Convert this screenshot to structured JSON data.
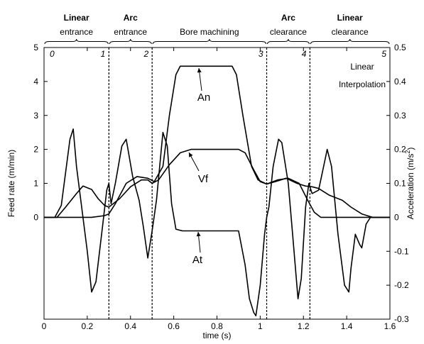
{
  "chart_data": {
    "type": "line",
    "xlabel": "time (s)",
    "ylabel_left": "Feed rate (m/min)",
    "ylabel_right": "Acceleration (m/s",
    "ylabel_right_sup": "2",
    "ylabel_right_end": ")",
    "xlim": [
      0,
      1.6
    ],
    "ylim_left": [
      -3,
      5
    ],
    "ylim_right": [
      -0.3,
      0.5
    ],
    "x_ticks": [
      "0",
      "0.2",
      "0.4",
      "0.6",
      "0.8",
      "1",
      "1.2",
      "1.4",
      "1.6"
    ],
    "y_left_ticks": [
      "0",
      "1",
      "2",
      "3",
      "4",
      "5"
    ],
    "y_right_ticks": [
      "-0.3",
      "-0.2",
      "-0.1",
      "0",
      "0.1",
      "0.2",
      "0.3",
      "0.4",
      "0.5"
    ],
    "phase_boundaries": [
      0.3,
      0.5,
      1.03,
      1.23
    ],
    "phases": [
      {
        "bold": "Linear",
        "regular": "entrance"
      },
      {
        "bold": "Arc",
        "regular": "entrance"
      },
      {
        "bold": "",
        "regular": "Bore machining"
      },
      {
        "bold": "Arc",
        "regular": "clearance"
      },
      {
        "bold": "Linear",
        "regular": "clearance"
      }
    ],
    "point_labels": [
      "0",
      "1",
      "2",
      "3",
      "4",
      "5"
    ],
    "annotation_lines": [
      "Linear",
      "Interpolation"
    ],
    "series": [
      {
        "name": "Vf",
        "axis": "left",
        "points": [
          [
            0,
            0
          ],
          [
            0.06,
            0
          ],
          [
            0.1,
            0.3
          ],
          [
            0.15,
            0.7
          ],
          [
            0.18,
            0.92
          ],
          [
            0.22,
            0.82
          ],
          [
            0.25,
            0.55
          ],
          [
            0.28,
            0.35
          ],
          [
            0.3,
            0.3
          ],
          [
            0.35,
            0.55
          ],
          [
            0.4,
            0.9
          ],
          [
            0.45,
            1.1
          ],
          [
            0.48,
            1.1
          ],
          [
            0.5,
            1.0
          ],
          [
            0.53,
            1.1
          ],
          [
            0.58,
            1.55
          ],
          [
            0.63,
            1.9
          ],
          [
            0.68,
            2.0
          ],
          [
            0.9,
            2.0
          ],
          [
            0.93,
            1.9
          ],
          [
            0.97,
            1.4
          ],
          [
            1.0,
            1.05
          ],
          [
            1.03,
            0.98
          ],
          [
            1.07,
            1.05
          ],
          [
            1.12,
            1.15
          ],
          [
            1.17,
            1.0
          ],
          [
            1.21,
            0.92
          ],
          [
            1.24,
            0.9
          ],
          [
            1.27,
            0.85
          ],
          [
            1.32,
            0.65
          ],
          [
            1.38,
            0.5
          ],
          [
            1.42,
            0.3
          ],
          [
            1.47,
            0.1
          ],
          [
            1.52,
            0
          ],
          [
            1.6,
            0
          ]
        ]
      },
      {
        "name": "An",
        "axis": "right",
        "points": [
          [
            0,
            0
          ],
          [
            0.22,
            0
          ],
          [
            0.28,
            0.005
          ],
          [
            0.3,
            0.01
          ],
          [
            0.33,
            0.04
          ],
          [
            0.38,
            0.1
          ],
          [
            0.43,
            0.12
          ],
          [
            0.48,
            0.115
          ],
          [
            0.51,
            0.105
          ],
          [
            0.55,
            0.15
          ],
          [
            0.58,
            0.3
          ],
          [
            0.61,
            0.42
          ],
          [
            0.63,
            0.445
          ],
          [
            0.87,
            0.445
          ],
          [
            0.89,
            0.42
          ],
          [
            0.92,
            0.3
          ],
          [
            0.96,
            0.15
          ],
          [
            0.99,
            0.11
          ],
          [
            1.03,
            0.098
          ],
          [
            1.08,
            0.11
          ],
          [
            1.13,
            0.115
          ],
          [
            1.18,
            0.1
          ],
          [
            1.22,
            0.05
          ],
          [
            1.25,
            0.015
          ],
          [
            1.28,
            0
          ],
          [
            1.6,
            0
          ]
        ]
      },
      {
        "name": "At",
        "axis": "right",
        "points": [
          [
            0,
            0
          ],
          [
            0.05,
            0
          ],
          [
            0.08,
            0.035
          ],
          [
            0.12,
            0.23
          ],
          [
            0.135,
            0.26
          ],
          [
            0.15,
            0.15
          ],
          [
            0.2,
            -0.1
          ],
          [
            0.22,
            -0.22
          ],
          [
            0.24,
            -0.19
          ],
          [
            0.27,
            -0.03
          ],
          [
            0.29,
            0.08
          ],
          [
            0.3,
            0.1
          ],
          [
            0.31,
            0.04
          ],
          [
            0.33,
            0.1
          ],
          [
            0.36,
            0.21
          ],
          [
            0.38,
            0.23
          ],
          [
            0.41,
            0.12
          ],
          [
            0.44,
            0.05
          ],
          [
            0.46,
            -0.03
          ],
          [
            0.48,
            -0.12
          ],
          [
            0.5,
            -0.04
          ],
          [
            0.52,
            0.05
          ],
          [
            0.55,
            0.25
          ],
          [
            0.57,
            0.21
          ],
          [
            0.59,
            0.04
          ],
          [
            0.61,
            -0.035
          ],
          [
            0.64,
            -0.04
          ],
          [
            0.9,
            -0.04
          ],
          [
            0.93,
            -0.14
          ],
          [
            0.95,
            -0.24
          ],
          [
            0.97,
            -0.28
          ],
          [
            0.98,
            -0.29
          ],
          [
            1.0,
            -0.2
          ],
          [
            1.02,
            -0.05
          ],
          [
            1.03,
            0
          ],
          [
            1.04,
            0.03
          ],
          [
            1.06,
            0.15
          ],
          [
            1.085,
            0.23
          ],
          [
            1.1,
            0.22
          ],
          [
            1.13,
            0.1
          ],
          [
            1.15,
            -0.05
          ],
          [
            1.175,
            -0.24
          ],
          [
            1.19,
            -0.18
          ],
          [
            1.21,
            0.03
          ],
          [
            1.225,
            0.1
          ],
          [
            1.24,
            0.07
          ],
          [
            1.27,
            0.08
          ],
          [
            1.3,
            0.17
          ],
          [
            1.31,
            0.2
          ],
          [
            1.33,
            0.15
          ],
          [
            1.36,
            -0.05
          ],
          [
            1.39,
            -0.2
          ],
          [
            1.41,
            -0.22
          ],
          [
            1.42,
            -0.15
          ],
          [
            1.44,
            -0.05
          ],
          [
            1.46,
            -0.08
          ],
          [
            1.47,
            -0.09
          ],
          [
            1.49,
            -0.02
          ],
          [
            1.51,
            0
          ],
          [
            1.6,
            0
          ]
        ]
      }
    ],
    "series_label_text": [
      "An",
      "Vf",
      "At"
    ]
  }
}
